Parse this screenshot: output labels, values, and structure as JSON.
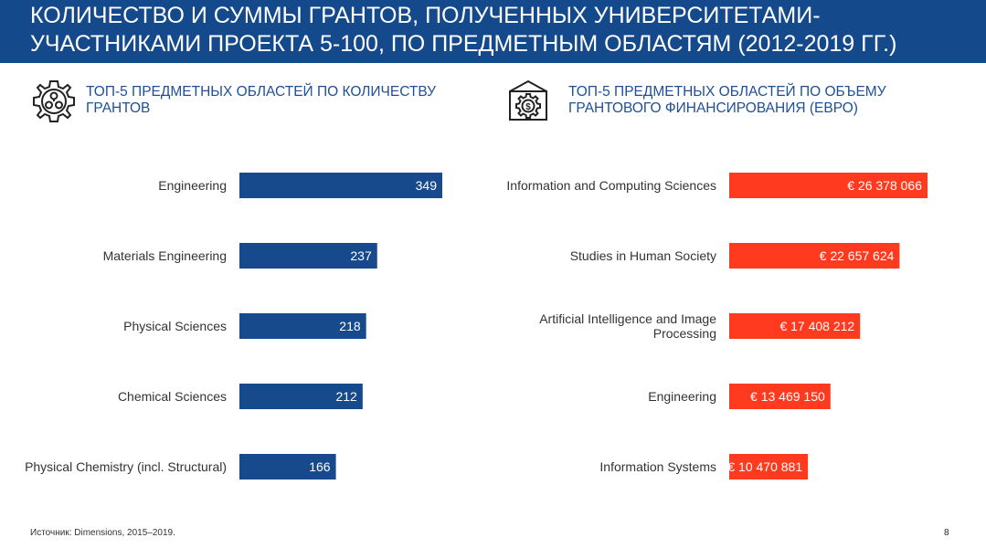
{
  "header": {
    "title": "Количество и суммы грантов, полученных университетами-участниками проекта 5-100, по предметным областям (2012-2019 гг.)"
  },
  "left_section": {
    "title": "ТОП-5 предметных областей по количеству грантов",
    "icon": "molecules-gear-icon"
  },
  "right_section": {
    "title": "ТОП-5 предметных областей по объему грантового финансирования (евро)",
    "icon": "money-gear-icon"
  },
  "colors": {
    "header_bg": "#144a8c",
    "bar_left": "#174a8c",
    "bar_right": "#ff3a1f",
    "title_text": "#1f4f96"
  },
  "chart_data": [
    {
      "type": "bar",
      "orientation": "horizontal",
      "title": "ТОП-5 предметных областей по количеству грантов",
      "categories": [
        "Engineering",
        "Materials Engineering",
        "Physical Sciences",
        "Chemical Sciences",
        "Physical Chemistry (incl. Structural)"
      ],
      "values": [
        349,
        237,
        218,
        212,
        166
      ],
      "data_labels": [
        "349",
        "237",
        "218",
        "212",
        "166"
      ],
      "xlim": [
        0,
        349
      ],
      "grid": false,
      "legend": "none"
    },
    {
      "type": "bar",
      "orientation": "horizontal",
      "title": "ТОП-5 предметных областей по объему грантового финансирования (евро)",
      "categories": [
        "Information and Computing Sciences",
        "Studies in Human Society",
        "Artificial Intelligence and Image Processing",
        "Engineering",
        "Information Systems"
      ],
      "values": [
        26378066,
        22657624,
        17408212,
        13469150,
        10470881
      ],
      "data_labels": [
        "€ 26 378 066",
        "€ 22 657 624",
        "€ 17 408 212",
        "€ 13 469 150",
        "€ 10 470 881"
      ],
      "xlim": [
        0,
        26378066
      ],
      "grid": false,
      "legend": "none"
    }
  ],
  "footer": {
    "source": "Источник: Dimensions, 2015–2019.",
    "page_number": "8"
  }
}
